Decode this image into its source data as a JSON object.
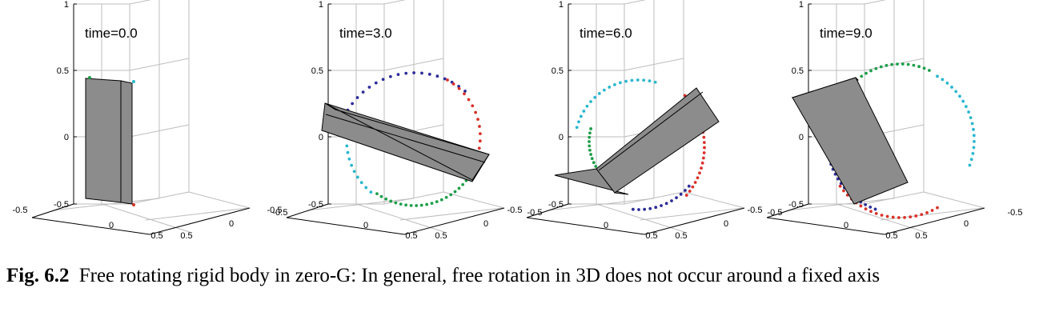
{
  "chart_data": [
    {
      "type": "scatter",
      "subtype": "3d-snapshot",
      "annotation": "time=0.0",
      "time": 0.0,
      "zticks": [
        "1",
        "0.5",
        "0",
        "-0.5"
      ],
      "xticks": [
        "-0.5",
        "0",
        "0.5"
      ],
      "yticks": [
        "-0.5",
        "0",
        "0.5"
      ],
      "zlim": [
        -0.5,
        1
      ],
      "grid": true
    },
    {
      "type": "scatter",
      "subtype": "3d-snapshot",
      "annotation": "time=3.0",
      "time": 3.0,
      "zticks": [
        "1",
        "0.5",
        "0",
        "-0.5"
      ],
      "xticks": [
        "-0.5",
        "0",
        "0.5"
      ],
      "yticks": [
        "-0.5",
        "0",
        "0.5"
      ],
      "zlim": [
        -0.5,
        1
      ],
      "grid": true
    },
    {
      "type": "scatter",
      "subtype": "3d-snapshot",
      "annotation": "time=6.0",
      "time": 6.0,
      "zticks": [
        "1",
        "0.5",
        "0",
        "-0.5"
      ],
      "xticks": [
        "-0.5",
        "0",
        "0.5"
      ],
      "yticks": [
        "-0.5",
        "0",
        "0.5"
      ],
      "zlim": [
        -0.5,
        1
      ],
      "grid": true
    },
    {
      "type": "scatter",
      "subtype": "3d-snapshot",
      "annotation": "time=9.0",
      "time": 9.0,
      "zticks": [
        "1",
        "0.5",
        "0",
        "-0.5"
      ],
      "xticks": [
        "-0.5",
        "0",
        "0.5"
      ],
      "yticks": [
        "-0.5",
        "0",
        "0.5"
      ],
      "zlim": [
        -0.5,
        1
      ],
      "grid": true
    }
  ],
  "colors": {
    "body_fill": "#8c8c8c",
    "trail_blue": "#2e2e9a",
    "trail_red": "#d9322a",
    "trail_cyan": "#2ab7cf",
    "trail_green": "#1f9e4a",
    "grid": "#bdbdbd"
  },
  "caption": {
    "label": "Fig. 6.2",
    "text": "Free rotating rigid body in zero-G: In general, free rotation in 3D does not occur around a fixed axis"
  }
}
